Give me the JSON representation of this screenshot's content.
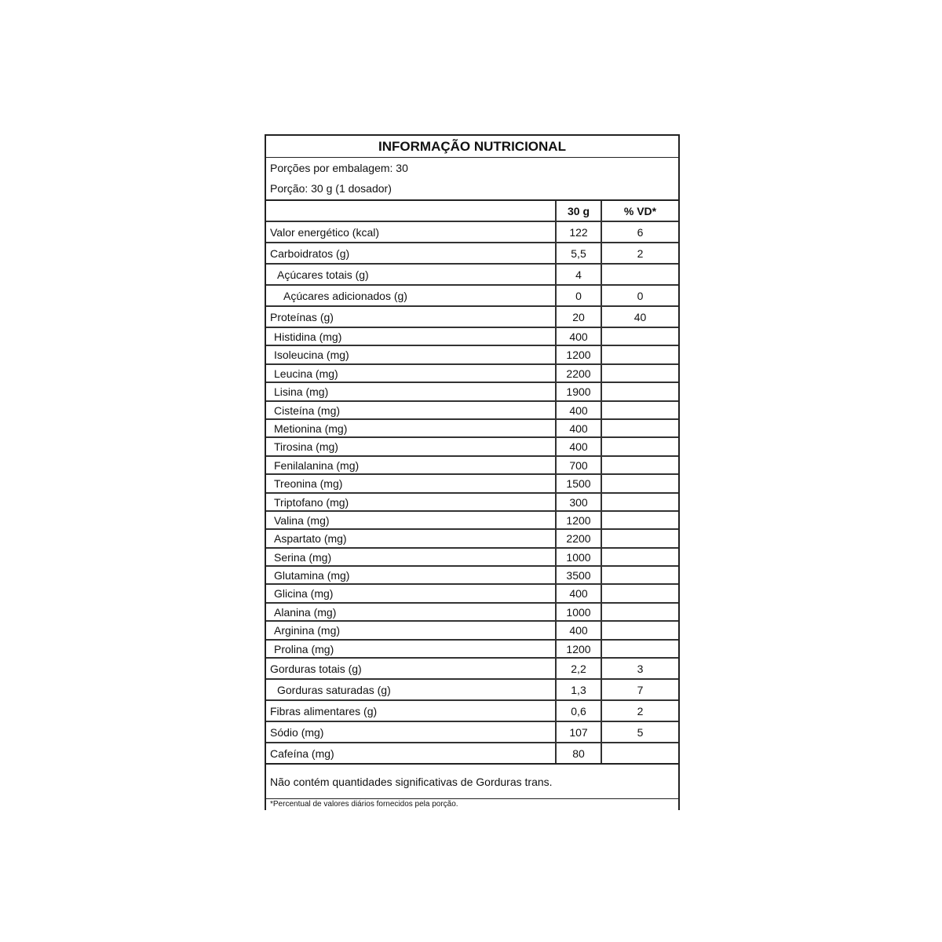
{
  "title": "INFORMAÇÃO NUTRICIONAL",
  "servings_per_package": "Porções por embalagem: 30",
  "serving_size": "Porção: 30 g (1 dosador)",
  "columns": {
    "amount": "30 g",
    "dv": "% VD*"
  },
  "rows": [
    {
      "name": "Valor energético (kcal)",
      "amount": "122",
      "dv": "6",
      "indent": 0,
      "type": "big"
    },
    {
      "name": "Carboidratos (g)",
      "amount": "5,5",
      "dv": "2",
      "indent": 0,
      "type": "big"
    },
    {
      "name": "Açúcares totais (g)",
      "amount": "4",
      "dv": "",
      "indent": 1,
      "type": "big"
    },
    {
      "name": "Açúcares adicionados (g)",
      "amount": "0",
      "dv": "0",
      "indent": 2,
      "type": "big"
    },
    {
      "name": "Proteínas (g)",
      "amount": "20",
      "dv": "40",
      "indent": 0,
      "type": "big"
    },
    {
      "name": "Histidina (mg)",
      "amount": "400",
      "dv": "",
      "indent": 0,
      "type": "amino"
    },
    {
      "name": "Isoleucina (mg)",
      "amount": "1200",
      "dv": "",
      "indent": 0,
      "type": "amino"
    },
    {
      "name": "Leucina (mg)",
      "amount": "2200",
      "dv": "",
      "indent": 0,
      "type": "amino"
    },
    {
      "name": "Lisina (mg)",
      "amount": "1900",
      "dv": "",
      "indent": 0,
      "type": "amino"
    },
    {
      "name": "Cisteína (mg)",
      "amount": "400",
      "dv": "",
      "indent": 0,
      "type": "amino"
    },
    {
      "name": "Metionina (mg)",
      "amount": "400",
      "dv": "",
      "indent": 0,
      "type": "amino"
    },
    {
      "name": "Tirosina (mg)",
      "amount": "400",
      "dv": "",
      "indent": 0,
      "type": "amino"
    },
    {
      "name": "Fenilalanina (mg)",
      "amount": "700",
      "dv": "",
      "indent": 0,
      "type": "amino"
    },
    {
      "name": "Treonina (mg)",
      "amount": "1500",
      "dv": "",
      "indent": 0,
      "type": "amino"
    },
    {
      "name": "Triptofano (mg)",
      "amount": "300",
      "dv": "",
      "indent": 0,
      "type": "amino"
    },
    {
      "name": "Valina (mg)",
      "amount": "1200",
      "dv": "",
      "indent": 0,
      "type": "amino"
    },
    {
      "name": "Aspartato (mg)",
      "amount": "2200",
      "dv": "",
      "indent": 0,
      "type": "amino"
    },
    {
      "name": "Serina (mg)",
      "amount": "1000",
      "dv": "",
      "indent": 0,
      "type": "amino"
    },
    {
      "name": "Glutamina (mg)",
      "amount": "3500",
      "dv": "",
      "indent": 0,
      "type": "amino"
    },
    {
      "name": "Glicina (mg)",
      "amount": "400",
      "dv": "",
      "indent": 0,
      "type": "amino"
    },
    {
      "name": "Alanina (mg)",
      "amount": "1000",
      "dv": "",
      "indent": 0,
      "type": "amino"
    },
    {
      "name": "Arginina (mg)",
      "amount": "400",
      "dv": "",
      "indent": 0,
      "type": "amino"
    },
    {
      "name": "Prolina (mg)",
      "amount": "1200",
      "dv": "",
      "indent": 0,
      "type": "amino"
    },
    {
      "name": "Gorduras totais (g)",
      "amount": "2,2",
      "dv": "3",
      "indent": 0,
      "type": "big"
    },
    {
      "name": "Gorduras saturadas (g)",
      "amount": "1,3",
      "dv": "7",
      "indent": 1,
      "type": "big"
    },
    {
      "name": "Fibras alimentares (g)",
      "amount": "0,6",
      "dv": "2",
      "indent": 0,
      "type": "big"
    },
    {
      "name": "Sódio (mg)",
      "amount": "107",
      "dv": "5",
      "indent": 0,
      "type": "big"
    },
    {
      "name": "Cafeína (mg)",
      "amount": "80",
      "dv": "",
      "indent": 0,
      "type": "big"
    }
  ],
  "footer": "Não contém quantidades significativas de Gorduras trans.",
  "footnote": "*Percentual de valores diários fornecidos pela porção."
}
